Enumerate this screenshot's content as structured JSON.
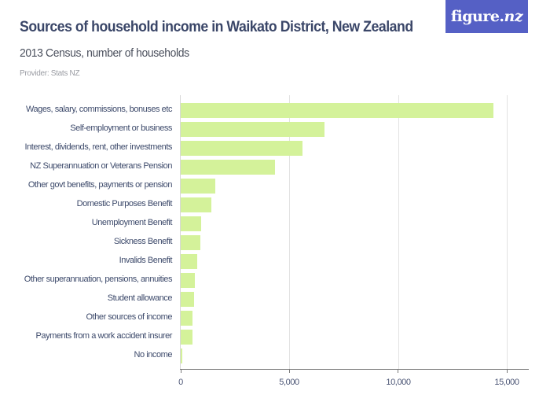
{
  "header": {
    "title": "Sources of household income in Waikato District, New Zealand",
    "subtitle": "2013 Census, number of households",
    "provider": "Provider: Stats NZ"
  },
  "logo": {
    "text_main": "figure.",
    "text_accent": "nz",
    "bg_color": "#5560c5"
  },
  "colors": {
    "bar": "#d4f29a",
    "text": "#3d4a6b",
    "grid": "#e2e2e2"
  },
  "chart_data": {
    "type": "bar",
    "orientation": "horizontal",
    "title": "Sources of household income in Waikato District, New Zealand",
    "subtitle": "2013 Census, number of households",
    "xlabel": "",
    "ylabel": "",
    "xlim": [
      0,
      16000
    ],
    "x_ticks": [
      0,
      5000,
      10000,
      15000
    ],
    "x_tick_labels": [
      "0",
      "5,000",
      "10,000",
      "15,000"
    ],
    "grid": true,
    "legend": null,
    "categories": [
      "Wages, salary, commissions, bonuses etc",
      "Self-employment or business",
      "Interest, dividends, rent, other investments",
      "NZ Superannuation or Veterans Pension",
      "Other govt benefits, payments or pension",
      "Domestic Purposes Benefit",
      "Unemployment Benefit",
      "Sickness Benefit",
      "Invalids Benefit",
      "Other superannuation, pensions, annuities",
      "Student allowance",
      "Other sources of income",
      "Payments from a work accident insurer",
      "No income"
    ],
    "values": [
      14400,
      6610,
      5600,
      4330,
      1580,
      1400,
      940,
      890,
      750,
      640,
      620,
      550,
      540,
      80
    ]
  }
}
